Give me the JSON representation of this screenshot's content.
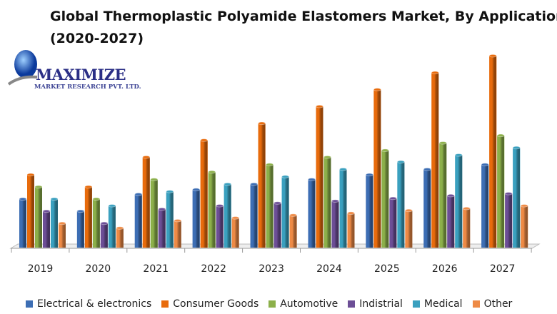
{
  "chart_data": {
    "type": "bar",
    "title": "Global Thermoplastic Polyamide Elastomers Market, By Application",
    "subtitle": "(2020-2027)",
    "categories": [
      "2019",
      "2020",
      "2021",
      "2022",
      "2023",
      "2024",
      "2025",
      "2026",
      "2027"
    ],
    "series": [
      {
        "name": "Electrical & electronics",
        "color": "#3d6eb4",
        "values": [
          72,
          54,
          79,
          86,
          94,
          101,
          108,
          116,
          123
        ]
      },
      {
        "name": "Consumer Goods",
        "color": "#e86b0c",
        "values": [
          108,
          90,
          134,
          159,
          184,
          209,
          234,
          259,
          284
        ]
      },
      {
        "name": "Automotive",
        "color": "#8cb04a",
        "values": [
          90,
          72,
          101,
          112,
          123,
          134,
          144,
          155,
          166
        ]
      },
      {
        "name": "Indistrial",
        "color": "#6c4e96",
        "values": [
          54,
          36,
          57,
          62,
          66,
          69,
          73,
          77,
          80
        ]
      },
      {
        "name": "Medical",
        "color": "#3aa0bf",
        "values": [
          72,
          62,
          83,
          94,
          105,
          116,
          127,
          137,
          148
        ]
      },
      {
        "name": "Other",
        "color": "#ee8a45",
        "values": [
          36,
          29,
          40,
          44,
          48,
          51,
          55,
          58,
          62
        ]
      }
    ],
    "ylim": [
      0,
      300
    ],
    "grid": false,
    "legend_position": "bottom",
    "style": "3d-cylinder"
  },
  "logo": {
    "name": "MAXIMIZE",
    "tagline": "MARKET RESEARCH PVT. LTD."
  }
}
